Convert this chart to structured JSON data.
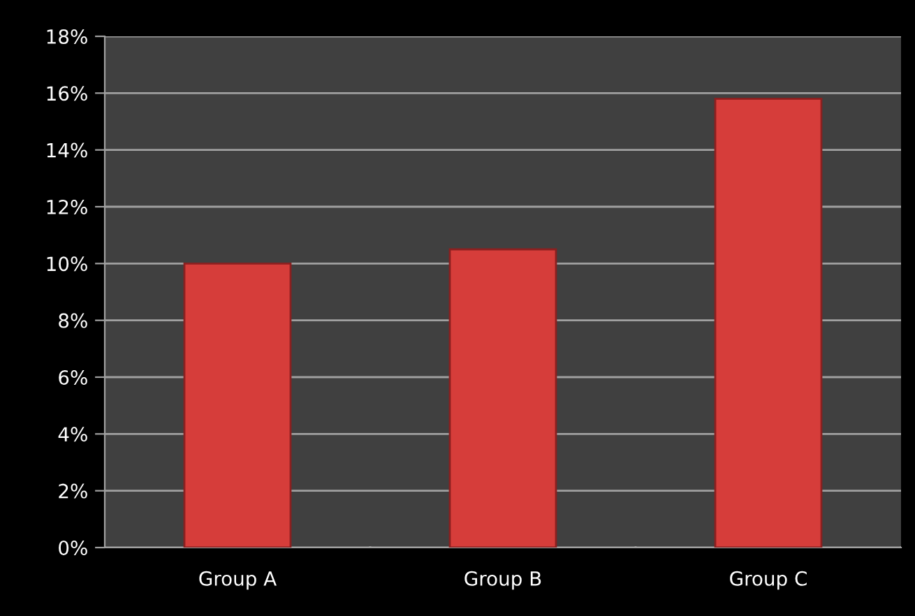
{
  "chart_data": {
    "type": "bar",
    "categories": [
      "Group A",
      "Group B",
      "Group C"
    ],
    "values": [
      10.0,
      10.5,
      15.8
    ],
    "color": "#d63d3a",
    "ylim": [
      0,
      18
    ],
    "yticks": [
      {
        "value": 0,
        "label": "0%"
      },
      {
        "value": 2,
        "label": "2%"
      },
      {
        "value": 4,
        "label": "4%"
      },
      {
        "value": 6,
        "label": "6%"
      },
      {
        "value": 8,
        "label": "8%"
      },
      {
        "value": 10,
        "label": "10%"
      },
      {
        "value": 12,
        "label": "12%"
      },
      {
        "value": 14,
        "label": "14%"
      },
      {
        "value": 16,
        "label": "16%"
      },
      {
        "value": 18,
        "label": "18%"
      }
    ],
    "grid": "y"
  }
}
